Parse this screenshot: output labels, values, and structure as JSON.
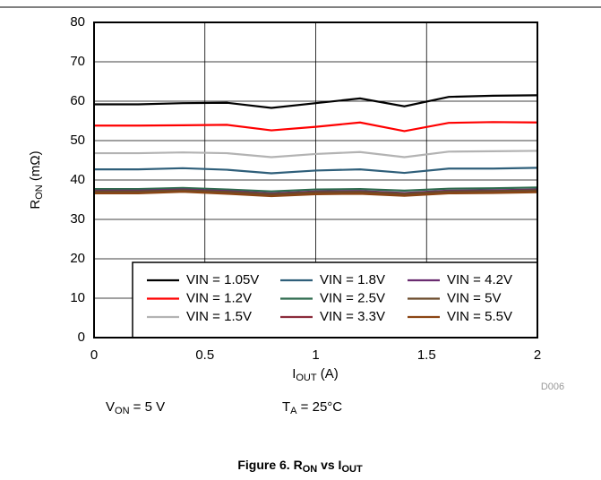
{
  "chart_data": {
    "type": "line",
    "ylabel": [
      "R",
      "ON",
      " (mΩ)"
    ],
    "xlabel": [
      "I",
      "OUT",
      " (A)"
    ],
    "figure_id": "D006",
    "notes": [
      [
        "V",
        "ON",
        " = 5 V"
      ],
      [
        "T",
        "A",
        " = 25°C"
      ]
    ],
    "caption": [
      "Figure 6. R",
      "ON",
      " vs I",
      "OUT"
    ],
    "x": [
      0,
      0.2,
      0.4,
      0.6,
      0.8,
      1.0,
      1.2,
      1.4,
      1.6,
      1.8,
      2.0
    ],
    "xlim": [
      0,
      2
    ],
    "xticks": [
      0,
      0.5,
      1,
      1.5,
      2
    ],
    "ylim": [
      0,
      80
    ],
    "yticks": [
      0,
      10,
      20,
      30,
      40,
      50,
      60,
      70,
      80
    ],
    "grid": true,
    "legend_loc": "lower right",
    "series": [
      {
        "name": "VIN = 1.05V",
        "color": "#000000",
        "values": [
          59.2,
          59.2,
          59.5,
          59.6,
          58.3,
          59.5,
          60.7,
          58.7,
          61.1,
          61.4,
          61.5
        ]
      },
      {
        "name": "VIN = 1.2V",
        "color": "#ff0000",
        "values": [
          53.8,
          53.8,
          53.9,
          54.0,
          52.6,
          53.5,
          54.6,
          52.4,
          54.5,
          54.7,
          54.6
        ]
      },
      {
        "name": "VIN = 1.5V",
        "color": "#b3b3b3",
        "values": [
          46.8,
          46.8,
          47.0,
          46.8,
          45.8,
          46.6,
          47.1,
          45.8,
          47.2,
          47.3,
          47.4
        ]
      },
      {
        "name": "VIN = 1.8V",
        "color": "#2f5f7a",
        "values": [
          42.7,
          42.7,
          43.0,
          42.6,
          41.7,
          42.4,
          42.7,
          41.8,
          42.9,
          42.9,
          43.1
        ]
      },
      {
        "name": "VIN = 2.5V",
        "color": "#2e6b4e",
        "values": [
          37.7,
          37.7,
          38.0,
          37.6,
          37.1,
          37.6,
          37.7,
          37.3,
          37.8,
          37.9,
          38.1
        ]
      },
      {
        "name": "VIN = 3.3V",
        "color": "#8b2b3b",
        "values": [
          36.8,
          36.8,
          37.2,
          36.7,
          36.1,
          36.6,
          36.7,
          36.2,
          36.8,
          36.9,
          37.1
        ]
      },
      {
        "name": "VIN = 4.2V",
        "color": "#6a2c70",
        "values": [
          37.3,
          37.3,
          37.6,
          37.2,
          36.6,
          37.1,
          37.2,
          36.7,
          37.3,
          37.4,
          37.6
        ]
      },
      {
        "name": "VIN = 5V",
        "color": "#6b4a2a",
        "values": [
          37.1,
          37.1,
          37.4,
          37.0,
          36.4,
          36.9,
          37.0,
          36.5,
          37.1,
          37.2,
          37.4
        ]
      },
      {
        "name": "VIN = 5.5V",
        "color": "#8b4513",
        "values": [
          36.6,
          36.6,
          37.0,
          36.5,
          35.9,
          36.4,
          36.5,
          36.0,
          36.6,
          36.7,
          36.9
        ]
      }
    ]
  }
}
